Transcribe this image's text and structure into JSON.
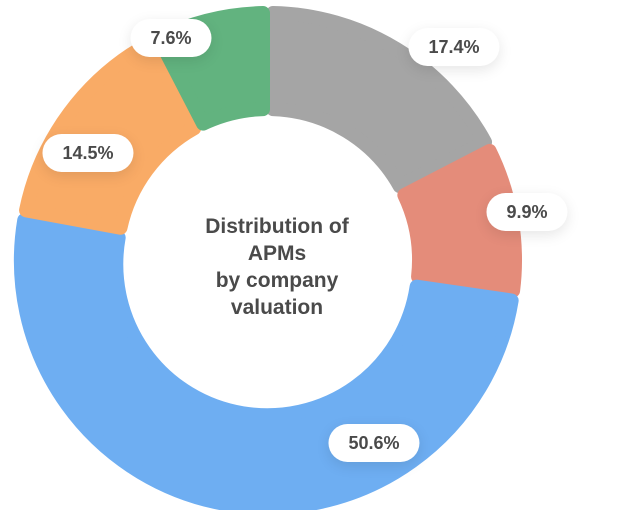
{
  "chart_data": {
    "type": "pie",
    "title": "Distribution of APMs by company valuation",
    "title_lines": [
      "Distribution of",
      "APMs",
      "by company",
      "valuation"
    ],
    "slices": [
      {
        "label": "17.4%",
        "value": 17.4,
        "color": "#a5a5a5"
      },
      {
        "label": "9.9%",
        "value": 9.9,
        "color": "#e48c7a"
      },
      {
        "label": "50.6%",
        "value": 50.6,
        "color": "#6eaef2"
      },
      {
        "label": "14.5%",
        "value": 14.5,
        "color": "#f9ab66"
      },
      {
        "label": "7.6%",
        "value": 7.6,
        "color": "#62b37f"
      }
    ]
  }
}
